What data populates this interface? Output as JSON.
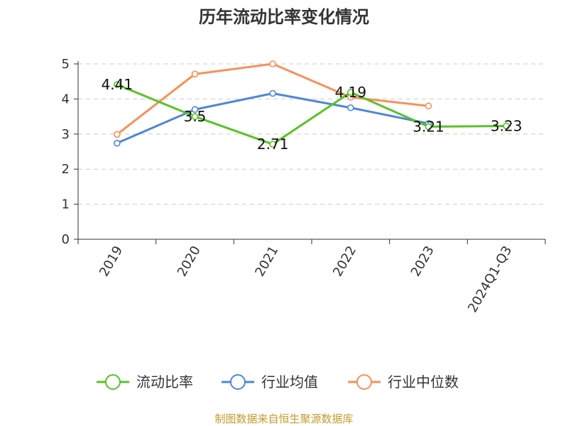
{
  "chart_data": {
    "type": "line",
    "title": "历年流动比率变化情况",
    "categories": [
      "2019",
      "2020",
      "2021",
      "2022",
      "2023",
      "2024Q1-Q3"
    ],
    "ylim": [
      0,
      5
    ],
    "yticks": [
      "0",
      "1",
      "2",
      "3",
      "4",
      "5"
    ],
    "grid": true,
    "legend_position": "bottom",
    "series": [
      {
        "name": "流动比率",
        "color": "#5ac229",
        "values": [
          4.41,
          3.5,
          2.71,
          4.19,
          3.21,
          3.23
        ],
        "labels": [
          "4.41",
          "3.5",
          "2.71",
          "4.19",
          "3.21",
          "3.23"
        ]
      },
      {
        "name": "行业均值",
        "color": "#4f86d9",
        "values": [
          2.74,
          3.7,
          4.16,
          3.75,
          3.3,
          null
        ]
      },
      {
        "name": "行业中位数",
        "color": "#f7915a",
        "values": [
          2.99,
          4.71,
          5.0,
          4.05,
          3.8,
          null
        ]
      }
    ],
    "source": "制图数据来自恒生聚源数据库"
  }
}
